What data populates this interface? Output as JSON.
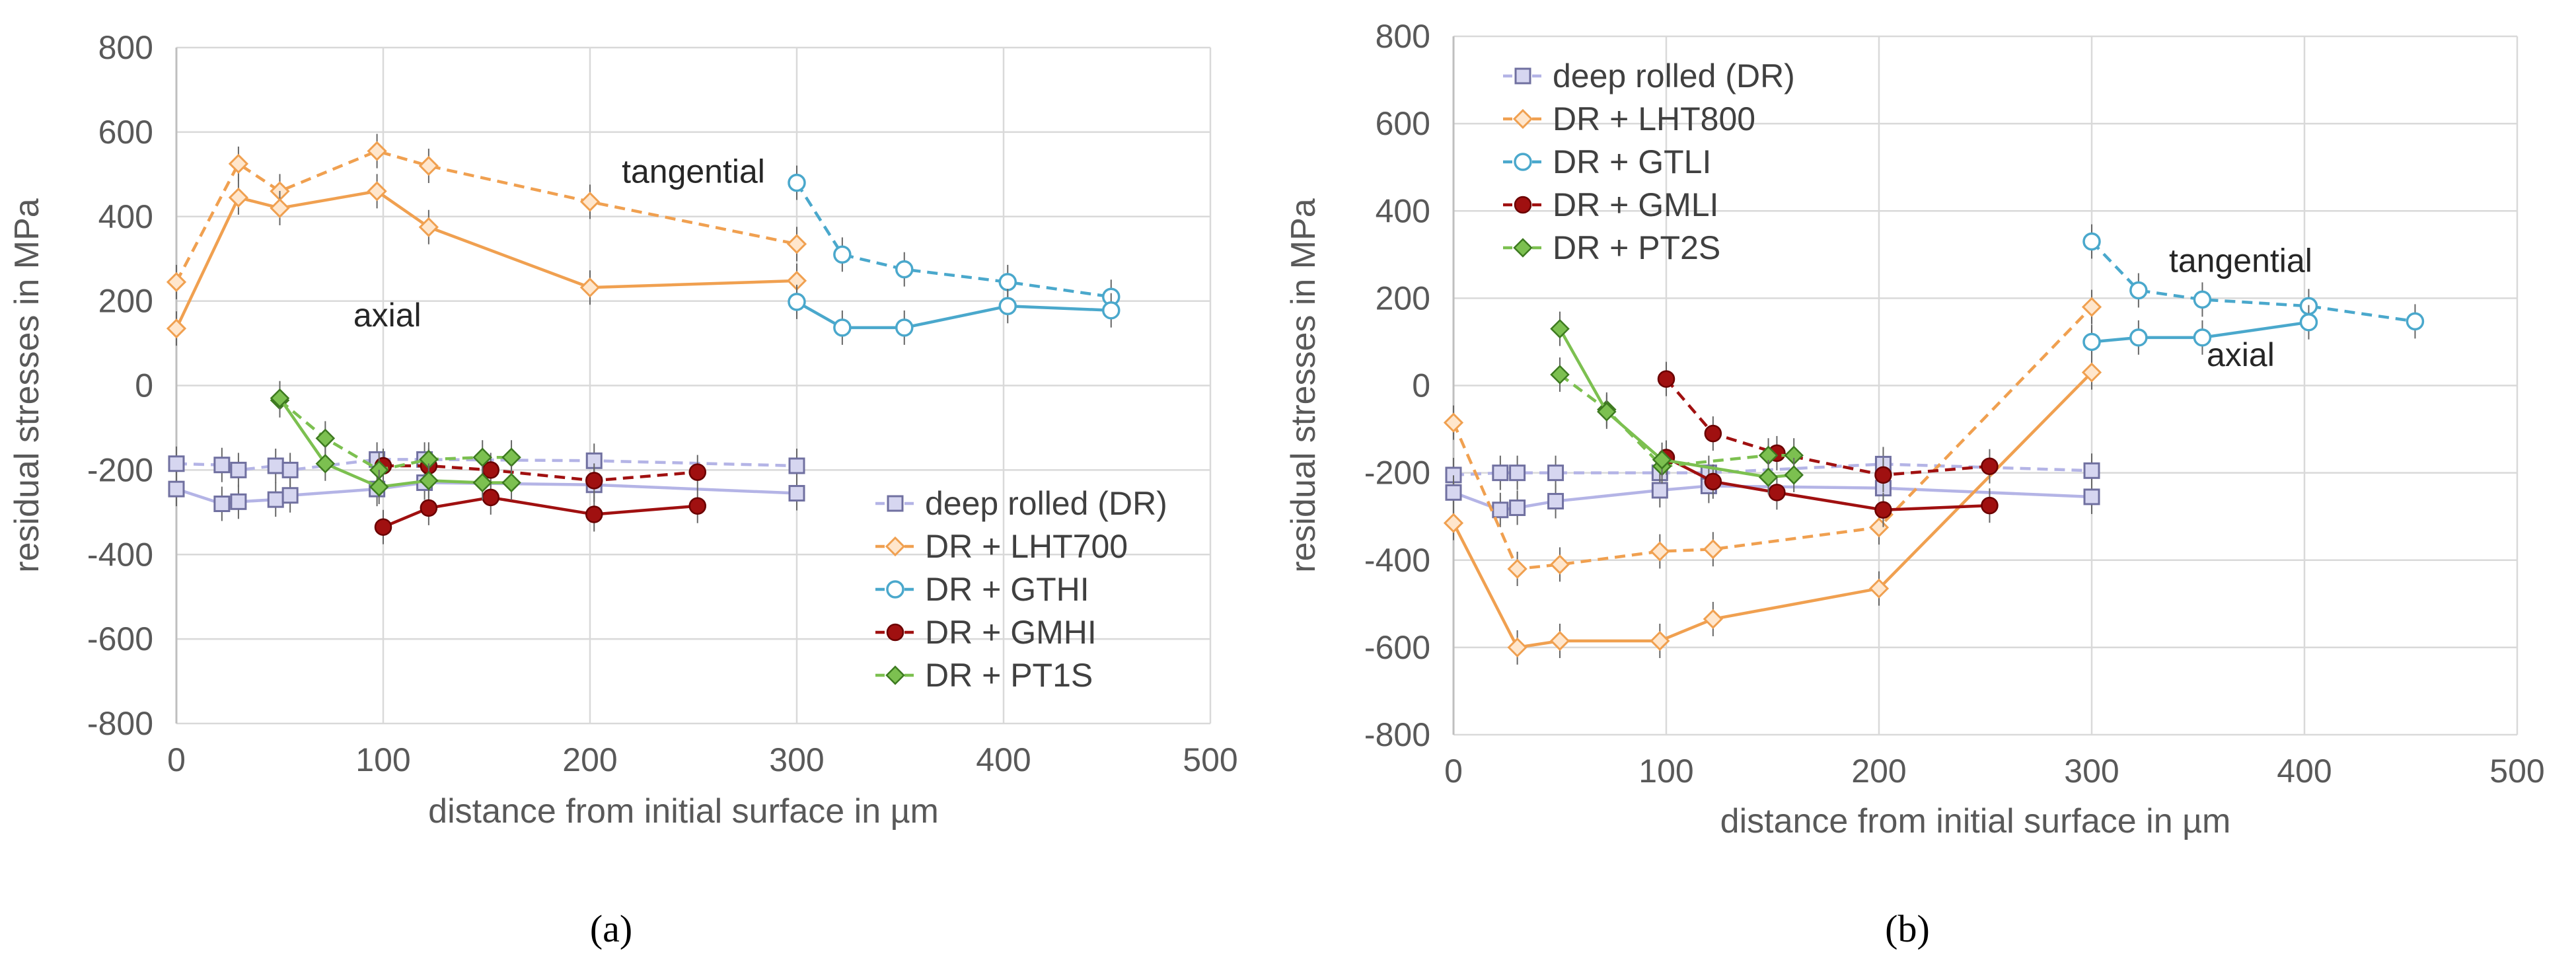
{
  "chart_data": [
    {
      "id": "a",
      "type": "line",
      "caption": "(a)",
      "xlabel": "distance from initial surface in µm",
      "ylabel": "residual stresses in MPa",
      "xlim": [
        0,
        500
      ],
      "ylim": [
        -800,
        800
      ],
      "xticks": [
        "0",
        "100",
        "200",
        "300",
        "400",
        "500"
      ],
      "yticks": [
        "800",
        "600",
        "400",
        "200",
        "0",
        "-200",
        "-400",
        "-600",
        "-800"
      ],
      "legend_position": "bottom-right",
      "annotations": [
        {
          "text": "tangential",
          "x": 250,
          "y": 480
        },
        {
          "text": "axial",
          "x": 102,
          "y": 140
        }
      ],
      "series": [
        {
          "name": "deep rolled (DR)",
          "legend": true,
          "color": "#b4b4e6",
          "marker": "square",
          "dash": true,
          "x": [
            0,
            22,
            30,
            48,
            55,
            97,
            120,
            202,
            300
          ],
          "y": [
            -185,
            -188,
            -200,
            -190,
            -200,
            -175,
            -175,
            -178,
            -190
          ]
        },
        {
          "name": "deep rolled (DR)",
          "legend": false,
          "color": "#b4b4e6",
          "marker": "square",
          "dash": false,
          "x": [
            0,
            22,
            30,
            48,
            55,
            97,
            120,
            202,
            300
          ],
          "y": [
            -245,
            -280,
            -275,
            -270,
            -260,
            -245,
            -230,
            -235,
            -255
          ]
        },
        {
          "name": "DR + LHT700",
          "legend": true,
          "color": "#f0a050",
          "marker": "diamond",
          "dash": true,
          "x": [
            0,
            30,
            50,
            97,
            122,
            200,
            300
          ],
          "y": [
            245,
            525,
            460,
            555,
            520,
            435,
            335
          ]
        },
        {
          "name": "DR + LHT700",
          "legend": false,
          "color": "#f0a050",
          "marker": "diamond",
          "dash": false,
          "x": [
            0,
            30,
            50,
            97,
            122,
            200,
            300
          ],
          "y": [
            135,
            445,
            420,
            460,
            375,
            232,
            248
          ]
        },
        {
          "name": "DR + GTHI",
          "legend": true,
          "color": "#4aa8cc",
          "marker": "circle",
          "dash": true,
          "x": [
            300,
            322,
            352,
            402,
            452
          ],
          "y": [
            480,
            310,
            275,
            245,
            210
          ]
        },
        {
          "name": "DR + GTHI",
          "legend": false,
          "color": "#4aa8cc",
          "marker": "circle",
          "dash": false,
          "x": [
            300,
            322,
            352,
            402,
            452
          ],
          "y": [
            198,
            137,
            137,
            188,
            178
          ]
        },
        {
          "name": "DR + GMHI",
          "legend": true,
          "color": "#a01010",
          "marker": "circle-filled",
          "dash": true,
          "x": [
            100,
            122,
            152,
            202,
            252
          ],
          "y": [
            -190,
            -190,
            -200,
            -225,
            -205
          ]
        },
        {
          "name": "DR + GMHI",
          "legend": false,
          "color": "#a01010",
          "marker": "circle-filled",
          "dash": false,
          "x": [
            100,
            122,
            152,
            202,
            252
          ],
          "y": [
            -335,
            -290,
            -265,
            -305,
            -285
          ]
        },
        {
          "name": "DR + PT1S",
          "legend": true,
          "color": "#7cc050",
          "marker": "diamond-filled",
          "dash": true,
          "x": [
            50,
            72,
            98,
            122,
            148,
            162
          ],
          "y": [
            -35,
            -125,
            -200,
            -175,
            -170,
            -170
          ]
        },
        {
          "name": "DR + PT1S",
          "legend": false,
          "color": "#7cc050",
          "marker": "diamond-filled",
          "dash": false,
          "x": [
            50,
            72,
            98,
            122,
            148,
            162
          ],
          "y": [
            -30,
            -185,
            -240,
            -225,
            -230,
            -230
          ]
        }
      ]
    },
    {
      "id": "b",
      "type": "line",
      "caption": "(b)",
      "xlabel": "distance from initial surface in µm",
      "ylabel": "residual stresses in MPa",
      "xlim": [
        0,
        500
      ],
      "ylim": [
        -800,
        800
      ],
      "xticks": [
        "0",
        "100",
        "200",
        "300",
        "400",
        "500"
      ],
      "yticks": [
        "800",
        "600",
        "400",
        "200",
        "0",
        "-200",
        "-400",
        "-600",
        "-800"
      ],
      "legend_position": "top-left",
      "annotations": [
        {
          "text": "tangential",
          "x": 370,
          "y": 260
        },
        {
          "text": "axial",
          "x": 370,
          "y": 45
        }
      ],
      "series": [
        {
          "name": "deep rolled (DR)",
          "legend": true,
          "color": "#b4b4e6",
          "marker": "square",
          "dash": true,
          "x": [
            0,
            22,
            30,
            48,
            97,
            120,
            202,
            300
          ],
          "y": [
            -205,
            -200,
            -200,
            -200,
            -200,
            -200,
            -180,
            -195
          ]
        },
        {
          "name": "deep rolled (DR)",
          "legend": false,
          "color": "#b4b4e6",
          "marker": "square",
          "dash": false,
          "x": [
            0,
            22,
            30,
            48,
            97,
            120,
            202,
            300
          ],
          "y": [
            -245,
            -285,
            -280,
            -265,
            -240,
            -230,
            -235,
            -255
          ]
        },
        {
          "name": "DR + LHT800",
          "legend": true,
          "color": "#f0a050",
          "marker": "diamond",
          "dash": true,
          "x": [
            0,
            30,
            50,
            97,
            122,
            200,
            300
          ],
          "y": [
            -85,
            -420,
            -410,
            -380,
            -375,
            -325,
            180
          ]
        },
        {
          "name": "DR + LHT800",
          "legend": false,
          "color": "#f0a050",
          "marker": "diamond",
          "dash": false,
          "x": [
            0,
            30,
            50,
            97,
            122,
            200,
            300
          ],
          "y": [
            -315,
            -600,
            -585,
            -585,
            -535,
            -465,
            30
          ]
        },
        {
          "name": "DR + GTLI",
          "legend": true,
          "color": "#4aa8cc",
          "marker": "circle",
          "dash": true,
          "x": [
            300,
            322,
            352,
            402,
            452
          ],
          "y": [
            330,
            218,
            197,
            182,
            147
          ]
        },
        {
          "name": "DR + GTLI",
          "legend": false,
          "color": "#4aa8cc",
          "marker": "circle",
          "dash": false,
          "x": [
            300,
            322,
            352,
            402
          ],
          "y": [
            100,
            110,
            110,
            145
          ]
        },
        {
          "name": "DR + GMLI",
          "legend": true,
          "color": "#a01010",
          "marker": "circle-filled",
          "dash": true,
          "x": [
            100,
            122,
            152,
            202,
            252
          ],
          "y": [
            15,
            -110,
            -155,
            -205,
            -185
          ]
        },
        {
          "name": "DR + GMLI",
          "legend": false,
          "color": "#a01010",
          "marker": "circle-filled",
          "dash": false,
          "x": [
            100,
            122,
            152,
            202,
            252
          ],
          "y": [
            -165,
            -220,
            -245,
            -285,
            -275
          ]
        },
        {
          "name": "DR + PT2S",
          "legend": true,
          "color": "#7cc050",
          "marker": "diamond-filled",
          "dash": true,
          "x": [
            50,
            72,
            98,
            148,
            160
          ],
          "y": [
            25,
            -55,
            -185,
            -160,
            -160
          ]
        },
        {
          "name": "DR + PT2S",
          "legend": false,
          "color": "#7cc050",
          "marker": "diamond-filled",
          "dash": false,
          "x": [
            50,
            72,
            98,
            148,
            160
          ],
          "y": [
            130,
            -60,
            -170,
            -210,
            -205
          ]
        }
      ]
    }
  ]
}
